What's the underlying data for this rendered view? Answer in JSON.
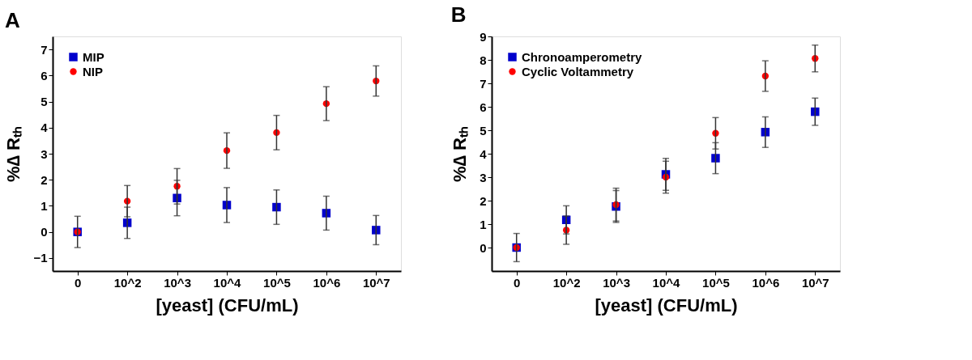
{
  "chart_data": [
    {
      "type": "scatter",
      "title": "A",
      "xlabel": "[yeast] (CFU/mL)",
      "ylabel": "%∆ Rₜₕ",
      "categories": [
        "0",
        "10^2",
        "10^3",
        "10^4",
        "10^5",
        "10^6",
        "10^7"
      ],
      "ylim": [
        -1.5,
        7.5
      ],
      "yticks": [
        -1,
        0,
        1,
        2,
        3,
        4,
        5,
        6,
        7
      ],
      "grid": false,
      "legend": "top left",
      "series": [
        {
          "name": "MIP",
          "color": "#0000cc",
          "marker": "square",
          "values": [
            0,
            0.35,
            1.3,
            1.03,
            0.95,
            0.72,
            0.07
          ],
          "errors": [
            0.6,
            0.6,
            0.68,
            0.67,
            0.66,
            0.65,
            0.56
          ]
        },
        {
          "name": "NIP",
          "color": "#ff0000",
          "marker": "circle",
          "values": [
            0,
            1.18,
            1.75,
            3.12,
            3.81,
            4.92,
            5.79
          ],
          "errors": [
            null,
            0.6,
            0.68,
            0.68,
            0.66,
            0.65,
            0.58
          ]
        }
      ]
    },
    {
      "type": "scatter",
      "title": "B",
      "xlabel": "[yeast] (CFU/mL)",
      "ylabel": "%∆ Rₜₕ",
      "categories": [
        "0",
        "10^2",
        "10^3",
        "10^4",
        "10^5",
        "10^6",
        "10^7"
      ],
      "ylim": [
        -1,
        9
      ],
      "yticks": [
        0,
        1,
        2,
        3,
        4,
        5,
        6,
        7,
        8,
        9
      ],
      "grid": false,
      "legend": "top left",
      "series": [
        {
          "name": "Chronoamperometry",
          "color": "#0000cc",
          "marker": "square",
          "values": [
            0,
            1.18,
            1.75,
            3.12,
            3.81,
            4.92,
            5.79
          ],
          "errors": [
            0.6,
            0.6,
            0.68,
            0.68,
            0.66,
            0.65,
            0.58
          ]
        },
        {
          "name": "Cyclic Voltammetry",
          "color": "#ff0000",
          "marker": "circle",
          "values": [
            0,
            0.74,
            1.83,
            3.0,
            4.87,
            7.31,
            8.06
          ],
          "errors": [
            null,
            0.6,
            0.7,
            0.68,
            0.67,
            0.65,
            0.57
          ]
        }
      ]
    }
  ]
}
